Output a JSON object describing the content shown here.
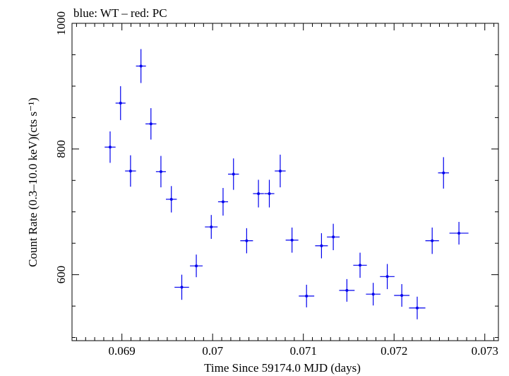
{
  "chart_data": {
    "type": "scatter",
    "title": "blue: WT – red: PC",
    "xlabel": "Time Since 59174.0 MJD (days)",
    "ylabel": "Count Rate (0.3–10.0 keV)(cts s⁻¹)",
    "xlim": [
      0.06845,
      0.07315
    ],
    "ylim": [
      495,
      1000
    ],
    "x_ticks": [
      0.069,
      0.07,
      0.071,
      0.072,
      0.073
    ],
    "x_tick_labels": [
      "0.069",
      "0.07",
      "0.071",
      "0.072",
      "0.073"
    ],
    "y_ticks": [
      600,
      800,
      1000
    ],
    "y_tick_labels": [
      "600",
      "800",
      "1000"
    ],
    "grid": false,
    "colors": {
      "wt": "#0000ee",
      "axis": "#000000"
    },
    "series": [
      {
        "points": [
          {
            "x": 0.06887,
            "xerr": 6e-05,
            "y": 803,
            "yerr": 25
          },
          {
            "x": 0.068985,
            "xerr": 5.5e-05,
            "y": 873,
            "yerr": 27
          },
          {
            "x": 0.069095,
            "xerr": 6e-05,
            "y": 765,
            "yerr": 25
          },
          {
            "x": 0.06921,
            "xerr": 5.5e-05,
            "y": 932,
            "yerr": 27
          },
          {
            "x": 0.06932,
            "xerr": 6e-05,
            "y": 840,
            "yerr": 25
          },
          {
            "x": 0.06943,
            "xerr": 5.5e-05,
            "y": 764,
            "yerr": 25
          },
          {
            "x": 0.069545,
            "xerr": 6e-05,
            "y": 720,
            "yerr": 21
          },
          {
            "x": 0.06966,
            "xerr": 8e-05,
            "y": 580,
            "yerr": 20
          },
          {
            "x": 0.06982,
            "xerr": 7e-05,
            "y": 614,
            "yerr": 18
          },
          {
            "x": 0.069985,
            "xerr": 7e-05,
            "y": 676,
            "yerr": 19
          },
          {
            "x": 0.070115,
            "xerr": 5.5e-05,
            "y": 716,
            "yerr": 22
          },
          {
            "x": 0.07023,
            "xerr": 6e-05,
            "y": 760,
            "yerr": 25
          },
          {
            "x": 0.070375,
            "xerr": 7e-05,
            "y": 654,
            "yerr": 20
          },
          {
            "x": 0.070505,
            "xerr": 6e-05,
            "y": 729,
            "yerr": 22
          },
          {
            "x": 0.070625,
            "xerr": 5.5e-05,
            "y": 729,
            "yerr": 22
          },
          {
            "x": 0.070745,
            "xerr": 6e-05,
            "y": 765,
            "yerr": 26
          },
          {
            "x": 0.070875,
            "xerr": 7e-05,
            "y": 655,
            "yerr": 20
          },
          {
            "x": 0.071035,
            "xerr": 8.5e-05,
            "y": 566,
            "yerr": 18
          },
          {
            "x": 0.0712,
            "xerr": 7e-05,
            "y": 646,
            "yerr": 20
          },
          {
            "x": 0.07133,
            "xerr": 7e-05,
            "y": 660,
            "yerr": 21
          },
          {
            "x": 0.07148,
            "xerr": 8.5e-05,
            "y": 575,
            "yerr": 18
          },
          {
            "x": 0.071625,
            "xerr": 7.5e-05,
            "y": 615,
            "yerr": 20
          },
          {
            "x": 0.07177,
            "xerr": 8e-05,
            "y": 569,
            "yerr": 18
          },
          {
            "x": 0.071925,
            "xerr": 8e-05,
            "y": 597,
            "yerr": 20
          },
          {
            "x": 0.072085,
            "xerr": 8.5e-05,
            "y": 567,
            "yerr": 18
          },
          {
            "x": 0.072255,
            "xerr": 9e-05,
            "y": 547,
            "yerr": 18
          },
          {
            "x": 0.07242,
            "xerr": 7.5e-05,
            "y": 654,
            "yerr": 21
          },
          {
            "x": 0.072545,
            "xerr": 6e-05,
            "y": 762,
            "yerr": 25
          },
          {
            "x": 0.072715,
            "xerr": 0.000105,
            "y": 666,
            "yerr": 18
          }
        ]
      }
    ]
  }
}
